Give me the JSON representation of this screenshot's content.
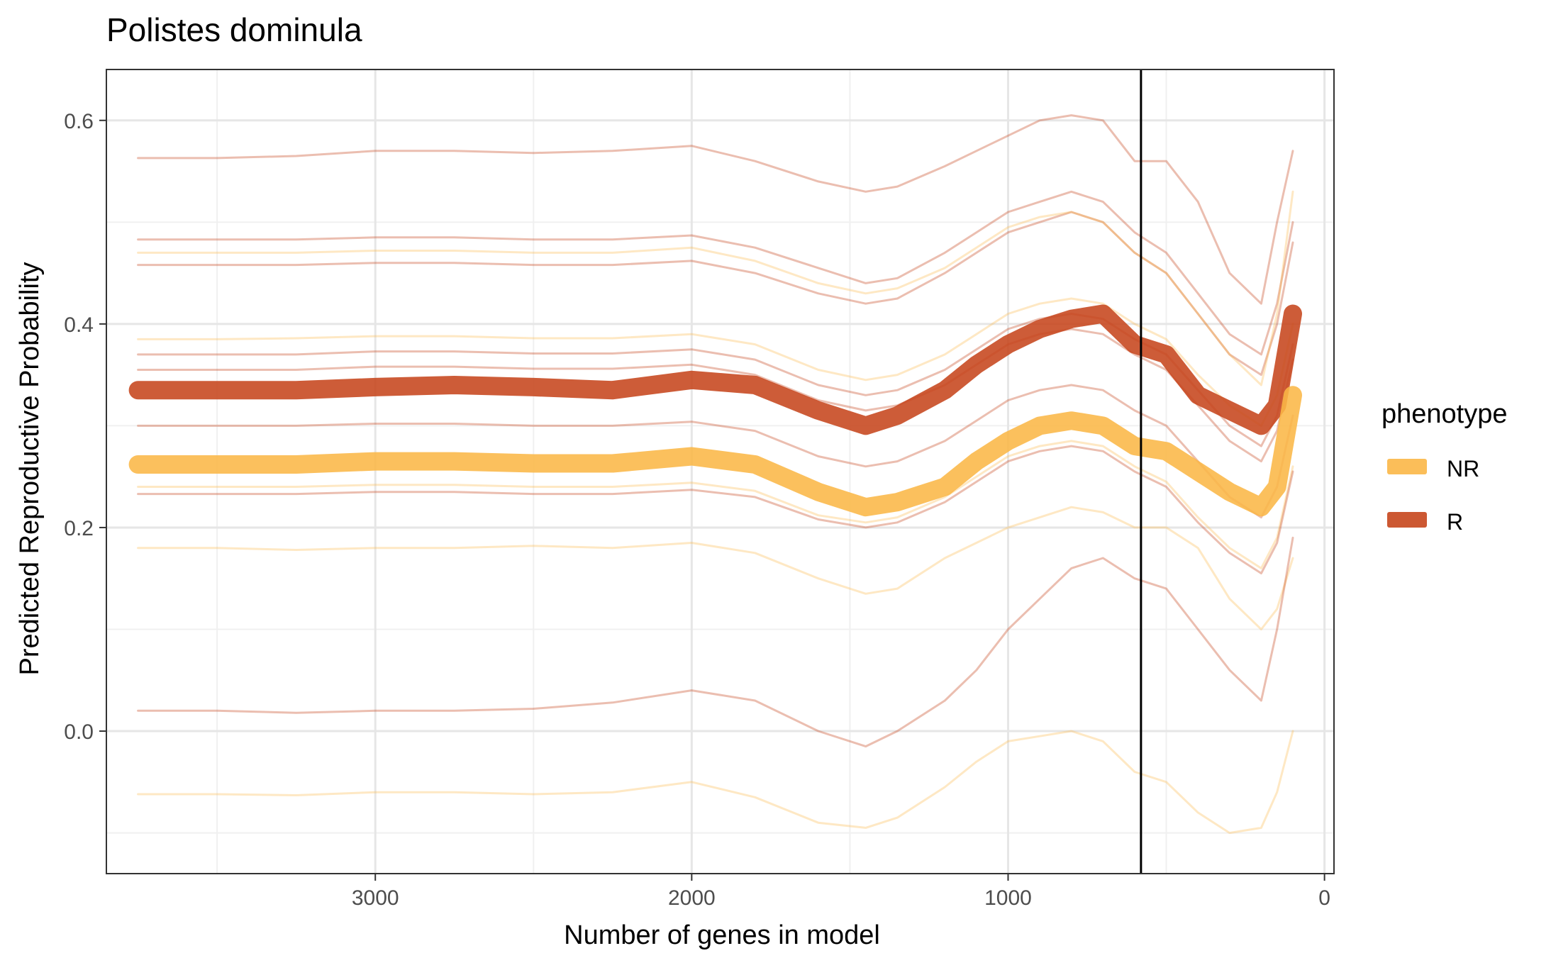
{
  "chart_data": {
    "type": "line",
    "title": "Polistes dominula",
    "xlabel": "Number of genes in model",
    "ylabel": "Predicted Reproductive Probability",
    "x_reversed": true,
    "xlim": [
      3850,
      -30
    ],
    "ylim": [
      -0.14,
      0.65
    ],
    "x_ticks": [
      3000,
      2000,
      1000,
      0
    ],
    "y_ticks": [
      0.0,
      0.2,
      0.4,
      0.6
    ],
    "y_tick_labels": [
      "0.0",
      "0.2",
      "0.4",
      "0.6"
    ],
    "grid": true,
    "vline_x": 580,
    "legend": {
      "title": "phenotype",
      "placement": "right",
      "entries": [
        {
          "label": "NR",
          "color": "#fbb747"
        },
        {
          "label": "R",
          "color": "#c6461c"
        }
      ]
    },
    "x": [
      3750,
      3500,
      3250,
      3000,
      2750,
      2500,
      2250,
      2000,
      1800,
      1600,
      1450,
      1350,
      1200,
      1100,
      1000,
      900,
      800,
      700,
      600,
      500,
      400,
      300,
      200,
      150,
      100
    ],
    "series": [
      {
        "phenotype": "R",
        "kind": "mean",
        "values": [
          0.335,
          0.335,
          0.335,
          0.338,
          0.34,
          0.338,
          0.335,
          0.345,
          0.34,
          0.315,
          0.3,
          0.31,
          0.335,
          0.36,
          0.38,
          0.395,
          0.405,
          0.41,
          0.38,
          0.37,
          0.33,
          0.315,
          0.3,
          0.32,
          0.41
        ]
      },
      {
        "phenotype": "NR",
        "kind": "mean",
        "values": [
          0.262,
          0.262,
          0.262,
          0.265,
          0.265,
          0.263,
          0.263,
          0.27,
          0.262,
          0.235,
          0.22,
          0.225,
          0.24,
          0.265,
          0.285,
          0.3,
          0.305,
          0.3,
          0.28,
          0.275,
          0.255,
          0.235,
          0.22,
          0.24,
          0.33
        ]
      },
      {
        "phenotype": "R",
        "kind": "individual",
        "values": [
          0.563,
          0.563,
          0.565,
          0.57,
          0.57,
          0.568,
          0.57,
          0.575,
          0.56,
          0.54,
          0.53,
          0.535,
          0.555,
          0.57,
          0.585,
          0.6,
          0.605,
          0.6,
          0.56,
          0.56,
          0.52,
          0.45,
          0.42,
          0.5,
          0.57
        ]
      },
      {
        "phenotype": "R",
        "kind": "individual",
        "values": [
          0.483,
          0.483,
          0.483,
          0.485,
          0.485,
          0.483,
          0.483,
          0.487,
          0.475,
          0.455,
          0.44,
          0.445,
          0.47,
          0.49,
          0.51,
          0.52,
          0.53,
          0.52,
          0.49,
          0.47,
          0.43,
          0.39,
          0.37,
          0.42,
          0.5
        ]
      },
      {
        "phenotype": "R",
        "kind": "individual",
        "values": [
          0.458,
          0.458,
          0.458,
          0.46,
          0.46,
          0.458,
          0.458,
          0.462,
          0.45,
          0.43,
          0.42,
          0.425,
          0.45,
          0.47,
          0.49,
          0.5,
          0.51,
          0.5,
          0.47,
          0.45,
          0.41,
          0.37,
          0.35,
          0.4,
          0.48
        ]
      },
      {
        "phenotype": "NR",
        "kind": "individual",
        "values": [
          0.47,
          0.47,
          0.47,
          0.472,
          0.472,
          0.47,
          0.47,
          0.475,
          0.462,
          0.44,
          0.43,
          0.435,
          0.455,
          0.475,
          0.495,
          0.505,
          0.51,
          0.5,
          0.47,
          0.45,
          0.41,
          0.37,
          0.34,
          0.41,
          0.53
        ]
      },
      {
        "phenotype": "NR",
        "kind": "individual",
        "values": [
          0.385,
          0.385,
          0.386,
          0.388,
          0.388,
          0.386,
          0.386,
          0.39,
          0.38,
          0.355,
          0.345,
          0.35,
          0.37,
          0.39,
          0.41,
          0.42,
          0.425,
          0.42,
          0.4,
          0.385,
          0.35,
          0.32,
          0.3,
          0.33,
          0.4
        ]
      },
      {
        "phenotype": "R",
        "kind": "individual",
        "values": [
          0.37,
          0.37,
          0.37,
          0.373,
          0.373,
          0.371,
          0.371,
          0.375,
          0.365,
          0.34,
          0.33,
          0.335,
          0.355,
          0.375,
          0.395,
          0.405,
          0.41,
          0.405,
          0.385,
          0.37,
          0.335,
          0.3,
          0.28,
          0.31,
          0.38
        ]
      },
      {
        "phenotype": "R",
        "kind": "individual",
        "values": [
          0.355,
          0.355,
          0.355,
          0.358,
          0.358,
          0.356,
          0.356,
          0.36,
          0.35,
          0.325,
          0.315,
          0.32,
          0.34,
          0.36,
          0.38,
          0.39,
          0.395,
          0.39,
          0.37,
          0.355,
          0.32,
          0.285,
          0.265,
          0.295,
          0.365
        ]
      },
      {
        "phenotype": "R",
        "kind": "individual",
        "values": [
          0.3,
          0.3,
          0.3,
          0.302,
          0.302,
          0.3,
          0.3,
          0.304,
          0.295,
          0.27,
          0.26,
          0.265,
          0.285,
          0.305,
          0.325,
          0.335,
          0.34,
          0.335,
          0.315,
          0.3,
          0.265,
          0.23,
          0.21,
          0.24,
          0.31
        ]
      },
      {
        "phenotype": "NR",
        "kind": "individual",
        "values": [
          0.24,
          0.24,
          0.24,
          0.242,
          0.242,
          0.24,
          0.24,
          0.244,
          0.236,
          0.212,
          0.205,
          0.21,
          0.23,
          0.25,
          0.27,
          0.28,
          0.285,
          0.28,
          0.26,
          0.245,
          0.21,
          0.18,
          0.16,
          0.19,
          0.26
        ]
      },
      {
        "phenotype": "R",
        "kind": "individual",
        "values": [
          0.233,
          0.233,
          0.233,
          0.235,
          0.235,
          0.233,
          0.233,
          0.237,
          0.23,
          0.208,
          0.2,
          0.205,
          0.225,
          0.245,
          0.265,
          0.275,
          0.28,
          0.275,
          0.255,
          0.24,
          0.205,
          0.175,
          0.155,
          0.185,
          0.255
        ]
      },
      {
        "phenotype": "NR",
        "kind": "individual",
        "values": [
          0.18,
          0.18,
          0.178,
          0.18,
          0.18,
          0.182,
          0.18,
          0.185,
          0.175,
          0.15,
          0.135,
          0.14,
          0.17,
          0.185,
          0.2,
          0.21,
          0.22,
          0.215,
          0.2,
          0.2,
          0.18,
          0.13,
          0.1,
          0.12,
          0.17
        ]
      },
      {
        "phenotype": "R",
        "kind": "individual",
        "values": [
          0.02,
          0.02,
          0.018,
          0.02,
          0.02,
          0.022,
          0.028,
          0.04,
          0.03,
          0.0,
          -0.015,
          0.0,
          0.03,
          0.06,
          0.1,
          0.13,
          0.16,
          0.17,
          0.15,
          0.14,
          0.1,
          0.06,
          0.03,
          0.1,
          0.19
        ]
      },
      {
        "phenotype": "NR",
        "kind": "individual",
        "values": [
          -0.062,
          -0.062,
          -0.063,
          -0.06,
          -0.06,
          -0.062,
          -0.06,
          -0.05,
          -0.065,
          -0.09,
          -0.095,
          -0.085,
          -0.055,
          -0.03,
          -0.01,
          -0.005,
          0.0,
          -0.01,
          -0.04,
          -0.05,
          -0.08,
          -0.1,
          -0.095,
          -0.06,
          0.0
        ]
      }
    ]
  }
}
